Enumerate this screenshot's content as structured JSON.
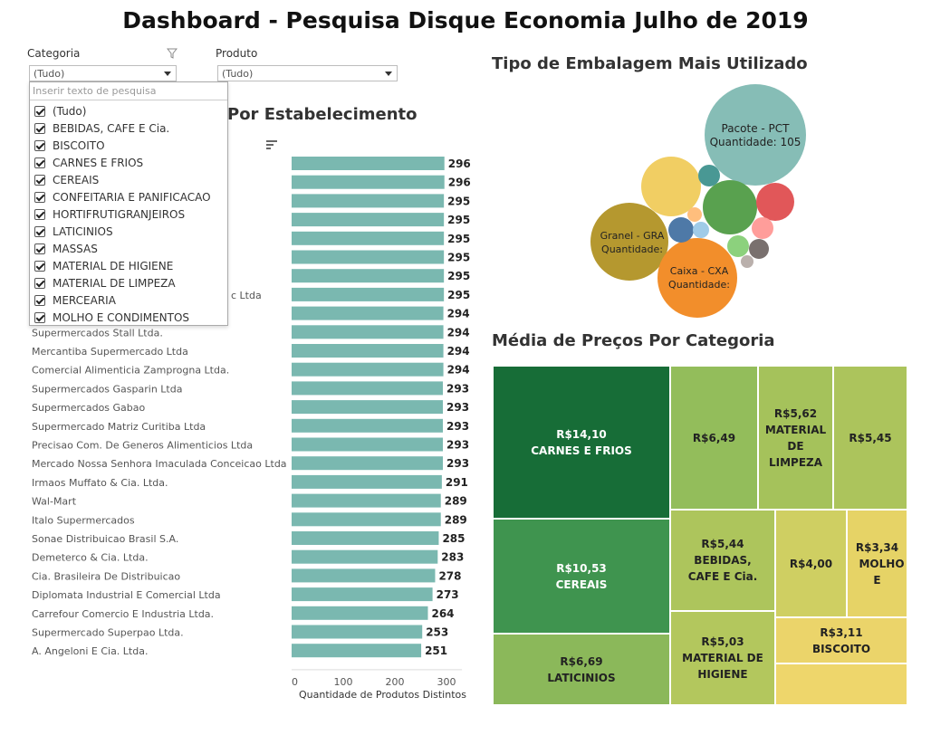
{
  "title": "Dashboard - Pesquisa Disque Economia Julho de 2019",
  "filters": {
    "categoria": {
      "label": "Categoria",
      "value": "(Tudo)"
    },
    "produto": {
      "label": "Produto",
      "value": "(Tudo)"
    },
    "search_placeholder": "Inserir texto de pesquisa",
    "options": [
      "(Tudo)",
      "BEBIDAS, CAFE E Cia.",
      "BISCOITO",
      "CARNES E FRIOS",
      "CEREAIS",
      "CONFEITARIA E PANIFICACAO",
      "HORTIFRUTIGRANJEIROS",
      "LATICINIOS",
      "MASSAS",
      "MATERIAL DE HIGIENE",
      "MATERIAL DE LIMPEZA",
      "MERCEARIA",
      "MOLHO E CONDIMENTOS"
    ]
  },
  "bar_section": {
    "title_visible": "Por Estabelecimento",
    "partial_label": "c Ltda",
    "axis_title": "Quantidade de Produtos Distintos",
    "bar_color": "#7ab8b0"
  },
  "bubble_section": {
    "title": "Tipo de Embalagem Mais Utilizado",
    "labels": {
      "pacote": {
        "name": "Pacote - PCT",
        "qty": "Quantidade: 105"
      },
      "granel": {
        "name": "Granel - GRA",
        "qty": "Quantidade:"
      },
      "caixa": {
        "name": "Caixa - CXA",
        "qty": "Quantidade:"
      }
    }
  },
  "treemap_section": {
    "title": "Média de Preços Por Categoria",
    "cells": [
      {
        "price": "R$14,10",
        "name": "CARNES E FRIOS",
        "color": "#176d37",
        "text_color": "#ffffff"
      },
      {
        "price": "R$10,53",
        "name": "CEREAIS",
        "color": "#3f944f",
        "text_color": "#ffffff"
      },
      {
        "price": "R$6,69",
        "name": "LATICINIOS",
        "color": "#8bb85a",
        "text_color": "#222222"
      },
      {
        "price": "R$6,49",
        "name": "",
        "color": "#93bd5b",
        "text_color": "#222222"
      },
      {
        "price": "R$5,62",
        "name": "MATERIAL DE LIMPEZA",
        "color": "#a5c25b",
        "text_color": "#222222"
      },
      {
        "price": "R$5,45",
        "name": "",
        "color": "#acc45c",
        "text_color": "#222222"
      },
      {
        "price": "R$5,44",
        "name": "BEBIDAS, CAFE E Cia.",
        "color": "#adc55c",
        "text_color": "#222222"
      },
      {
        "price": "R$4,00",
        "name": "",
        "color": "#cfcf62",
        "text_color": "#222222"
      },
      {
        "price": "R$3,34",
        "name": "MOLHO E",
        "color": "#e6d366",
        "text_color": "#222222"
      },
      {
        "price": "R$5,03",
        "name": "MATERIAL DE HIGIENE",
        "color": "#b3c75d",
        "text_color": "#222222"
      },
      {
        "price": "R$3,11",
        "name": "BISCOITO",
        "color": "#ebd46a",
        "text_color": "#222222"
      },
      {
        "price": "",
        "name": "",
        "color": "#eed66b",
        "text_color": "#222222"
      }
    ]
  },
  "chart_data": [
    {
      "type": "bar",
      "orientation": "horizontal",
      "title": "Por Estabelecimento",
      "xlabel": "Quantidade de Produtos Distintos",
      "xlim": [
        0,
        330
      ],
      "ticks": [
        0,
        100,
        200,
        300
      ],
      "categories": [
        "",
        "",
        "",
        "",
        "",
        "",
        "",
        "",
        "",
        "Supermercados Stall Ltda.",
        "Mercantiba Supermercado Ltda",
        "Comercial Alimenticia Zamprogna Ltda.",
        "Supermercados Gasparin Ltda",
        "Supermercados Gabao",
        "Supermercado Matriz Curitiba Ltda",
        "Precisao Com. De Generos Alimenticios Ltda",
        "Mercado Nossa Senhora Imaculada Conceicao Ltda",
        "Irmaos Muffato & Cia. Ltda.",
        "Wal-Mart",
        "Italo Supermercados",
        "Sonae Distribuicao Brasil S.A.",
        "Demeterco & Cia. Ltda.",
        "Cia. Brasileira De Distribuicao",
        "Diplomata Industrial E Comercial Ltda",
        "Carrefour Comercio E Industria Ltda.",
        "Supermercado Superpao Ltda.",
        "A. Angeloni E Cia. Ltda."
      ],
      "values": [
        296,
        296,
        295,
        295,
        295,
        295,
        295,
        295,
        294,
        294,
        294,
        294,
        293,
        293,
        293,
        293,
        293,
        291,
        289,
        289,
        285,
        283,
        278,
        273,
        264,
        253,
        251
      ]
    },
    {
      "type": "bubble",
      "title": "Tipo de Embalagem Mais Utilizado",
      "points": [
        {
          "label": "Pacote - PCT",
          "value": 105,
          "color": "#86bdb6"
        },
        {
          "label": "Granel - GRA",
          "color": "#b5982f"
        },
        {
          "label": "Caixa - CXA",
          "color": "#f28e2b"
        },
        {
          "label": "",
          "color": "#f1ce63"
        },
        {
          "label": "",
          "color": "#59a14f"
        },
        {
          "label": "",
          "color": "#e15759"
        },
        {
          "label": "",
          "color": "#4e79a7"
        },
        {
          "label": "",
          "color": "#499894"
        },
        {
          "label": "",
          "color": "#ff9d9a"
        },
        {
          "label": "",
          "color": "#8cd17d"
        },
        {
          "label": "",
          "color": "#79706e"
        },
        {
          "label": "",
          "color": "#ffbe7d"
        },
        {
          "label": "",
          "color": "#a0cbe8"
        },
        {
          "label": "",
          "color": "#bab0ac"
        }
      ]
    },
    {
      "type": "treemap",
      "title": "Média de Preços Por Categoria",
      "items": [
        {
          "name": "CARNES E FRIOS",
          "value": 14.1
        },
        {
          "name": "CEREAIS",
          "value": 10.53
        },
        {
          "name": "LATICINIOS",
          "value": 6.69
        },
        {
          "name": "",
          "value": 6.49
        },
        {
          "name": "MATERIAL DE LIMPEZA",
          "value": 5.62
        },
        {
          "name": "",
          "value": 5.45
        },
        {
          "name": "BEBIDAS, CAFE E Cia.",
          "value": 5.44
        },
        {
          "name": "MATERIAL DE HIGIENE",
          "value": 5.03
        },
        {
          "name": "",
          "value": 4.0
        },
        {
          "name": "MOLHO E",
          "value": 3.34
        },
        {
          "name": "BISCOITO",
          "value": 3.11
        }
      ]
    }
  ]
}
